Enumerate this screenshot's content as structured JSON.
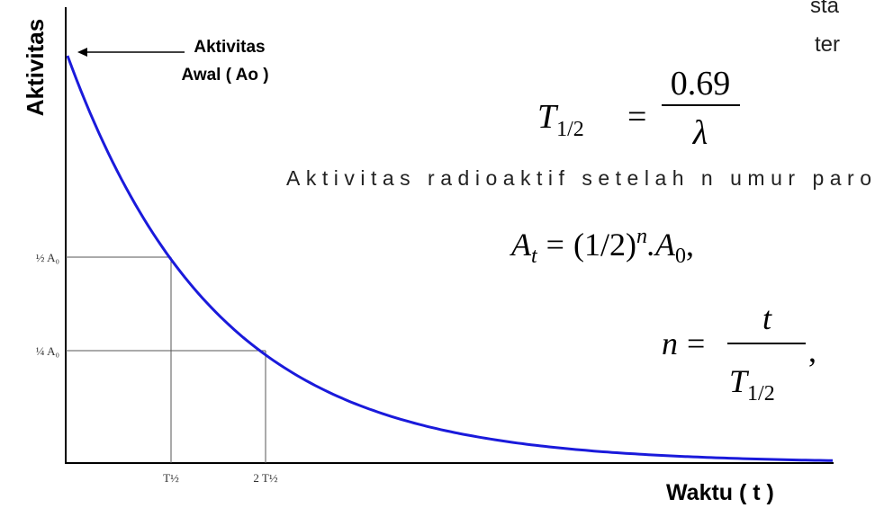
{
  "top_right_fragments": [
    "sta",
    "ter"
  ],
  "graph": {
    "y_axis_label": "Aktivitas",
    "x_axis_label": "Waktu ( t )",
    "annotation": {
      "line1": "Aktivitas",
      "line2": "Awal ( Ao )"
    },
    "y_labels": [
      "½ A₀",
      "¼ A₀"
    ],
    "x_labels": [
      "T½",
      "2 T½"
    ]
  },
  "formula_half_life": {
    "lhs": "T",
    "lhs_sub": "1/2",
    "relation": "=",
    "numerator": "0.69",
    "denominator": "λ"
  },
  "caption": "Aktivitas radioaktif setelah n umur paro",
  "formula_activity": {
    "lhs": "A",
    "lhs_sub": "t",
    "relation": "=",
    "base": "(1/2)",
    "exp": "n",
    "factor": ".A",
    "factor_sub": "0",
    "end": ","
  },
  "formula_n": {
    "lhs": "n",
    "relation": "=",
    "numerator": "t",
    "denominator": "T",
    "denominator_sub": "1/2",
    "end": ","
  }
}
